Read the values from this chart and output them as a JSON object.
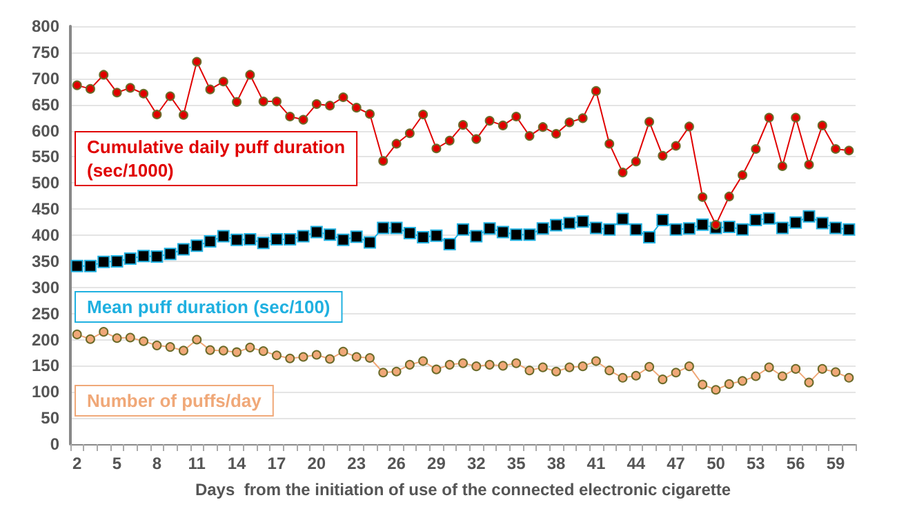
{
  "chart_data": {
    "type": "line",
    "xlabel": "Days  from the initiation of use of the connected electronic cigarette",
    "categories": [
      "2",
      null,
      null,
      "5",
      null,
      null,
      "8",
      null,
      null,
      "11",
      null,
      null,
      "14",
      null,
      null,
      "17",
      null,
      null,
      "20",
      null,
      null,
      "23",
      null,
      null,
      "26",
      null,
      null,
      "29",
      null,
      null,
      "32",
      null,
      null,
      "35",
      null,
      null,
      "38",
      null,
      null,
      "41",
      null,
      null,
      "44",
      null,
      null,
      "47",
      null,
      null,
      "50",
      null,
      null,
      "53",
      null,
      null,
      "56",
      null,
      null,
      "59",
      null
    ],
    "series": [
      {
        "name": "Cumulative daily puff duration (sec/1000)",
        "color": "#e00000",
        "marker": "circle",
        "values": [
          687,
          680,
          707,
          673,
          682,
          671,
          631,
          666,
          630,
          732,
          679,
          694,
          655,
          707,
          656,
          656,
          627,
          621,
          651,
          648,
          664,
          644,
          632,
          542,
          575,
          595,
          631,
          566,
          581,
          611,
          584,
          619,
          610,
          627,
          590,
          607,
          594,
          616,
          624,
          676,
          575,
          520,
          541,
          617,
          552,
          571,
          608,
          473,
          420,
          474,
          515,
          565,
          625,
          532,
          625,
          535,
          610,
          565,
          562
        ]
      },
      {
        "name": "Mean puff duration (sec/100)",
        "color": "#1fb0e0",
        "marker": "square",
        "values": [
          341,
          341,
          349,
          350,
          355,
          360,
          359,
          364,
          373,
          380,
          388,
          398,
          391,
          392,
          385,
          392,
          392,
          398,
          406,
          401,
          391,
          397,
          386,
          414,
          414,
          404,
          396,
          399,
          383,
          411,
          398,
          413,
          406,
          401,
          401,
          413,
          419,
          423,
          426,
          414,
          411,
          431,
          411,
          396,
          429,
          411,
          413,
          420,
          414,
          416,
          411,
          429,
          432,
          414,
          424,
          436,
          423,
          414,
          411
        ]
      },
      {
        "name": "Number of puffs/day",
        "color": "#f0a878",
        "marker": "circle",
        "values": [
          210,
          201,
          215,
          203,
          204,
          197,
          189,
          186,
          179,
          200,
          180,
          179,
          176,
          185,
          178,
          170,
          164,
          167,
          171,
          163,
          177,
          167,
          165,
          137,
          139,
          152,
          159,
          143,
          152,
          155,
          149,
          152,
          150,
          155,
          141,
          147,
          139,
          147,
          149,
          159,
          141,
          127,
          131,
          148,
          124,
          137,
          149,
          114,
          104,
          115,
          121,
          130,
          147,
          130,
          144,
          118,
          144,
          138,
          127
        ]
      }
    ],
    "ylim": [
      0,
      800
    ],
    "yticks": [
      0,
      50,
      100,
      150,
      200,
      250,
      300,
      350,
      400,
      450,
      500,
      550,
      600,
      650,
      700,
      750,
      800
    ],
    "grid": "y",
    "legend": "left"
  }
}
